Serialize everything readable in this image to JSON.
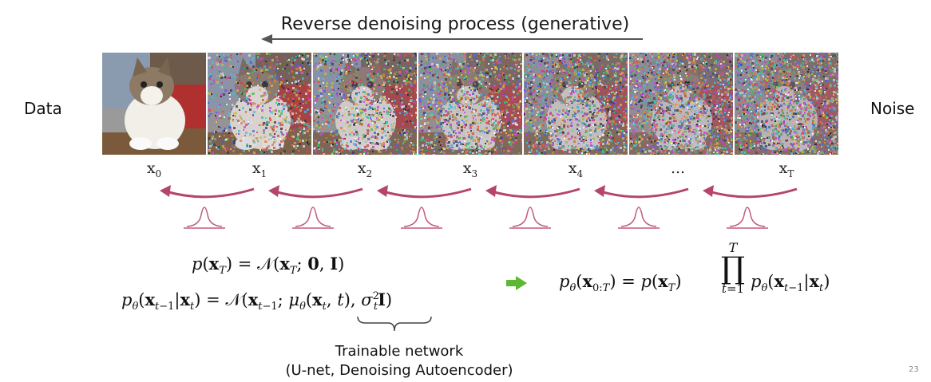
{
  "title": "Reverse denoising process (generative)",
  "left_label": "Data",
  "right_label": "Noise",
  "steps": [
    {
      "base": "x",
      "sub": "0"
    },
    {
      "base": "x",
      "sub": "1"
    },
    {
      "base": "x",
      "sub": "2"
    },
    {
      "base": "x",
      "sub": "3"
    },
    {
      "base": "x",
      "sub": "4"
    },
    {
      "base": "...",
      "sub": ""
    },
    {
      "base": "x",
      "sub": "T"
    }
  ],
  "noise_levels": [
    0,
    0.45,
    0.6,
    0.72,
    0.82,
    0.92,
    1.0
  ],
  "equations": {
    "prior": "p(x_T) = 𝒩(x_T; 0, I)",
    "transition": "p_θ(x_{t−1}|x_t) = 𝒩(x_{t−1}; μ_θ(x_t, t), σ_t² I)",
    "joint": "p_θ(x_{0:T}) = p(x_T) ∏_{t=1}^{T} p_θ(x_{t−1}|x_t)"
  },
  "network_caption_line1": "Trainable network",
  "network_caption_line2": "(U-net, Denoising Autoencoder)",
  "page_number": "23",
  "colors": {
    "arrow": "#b5446e",
    "gaussian": "#c05a80",
    "implies_arrow": "#5cb833",
    "title_arrow": "#555555"
  }
}
